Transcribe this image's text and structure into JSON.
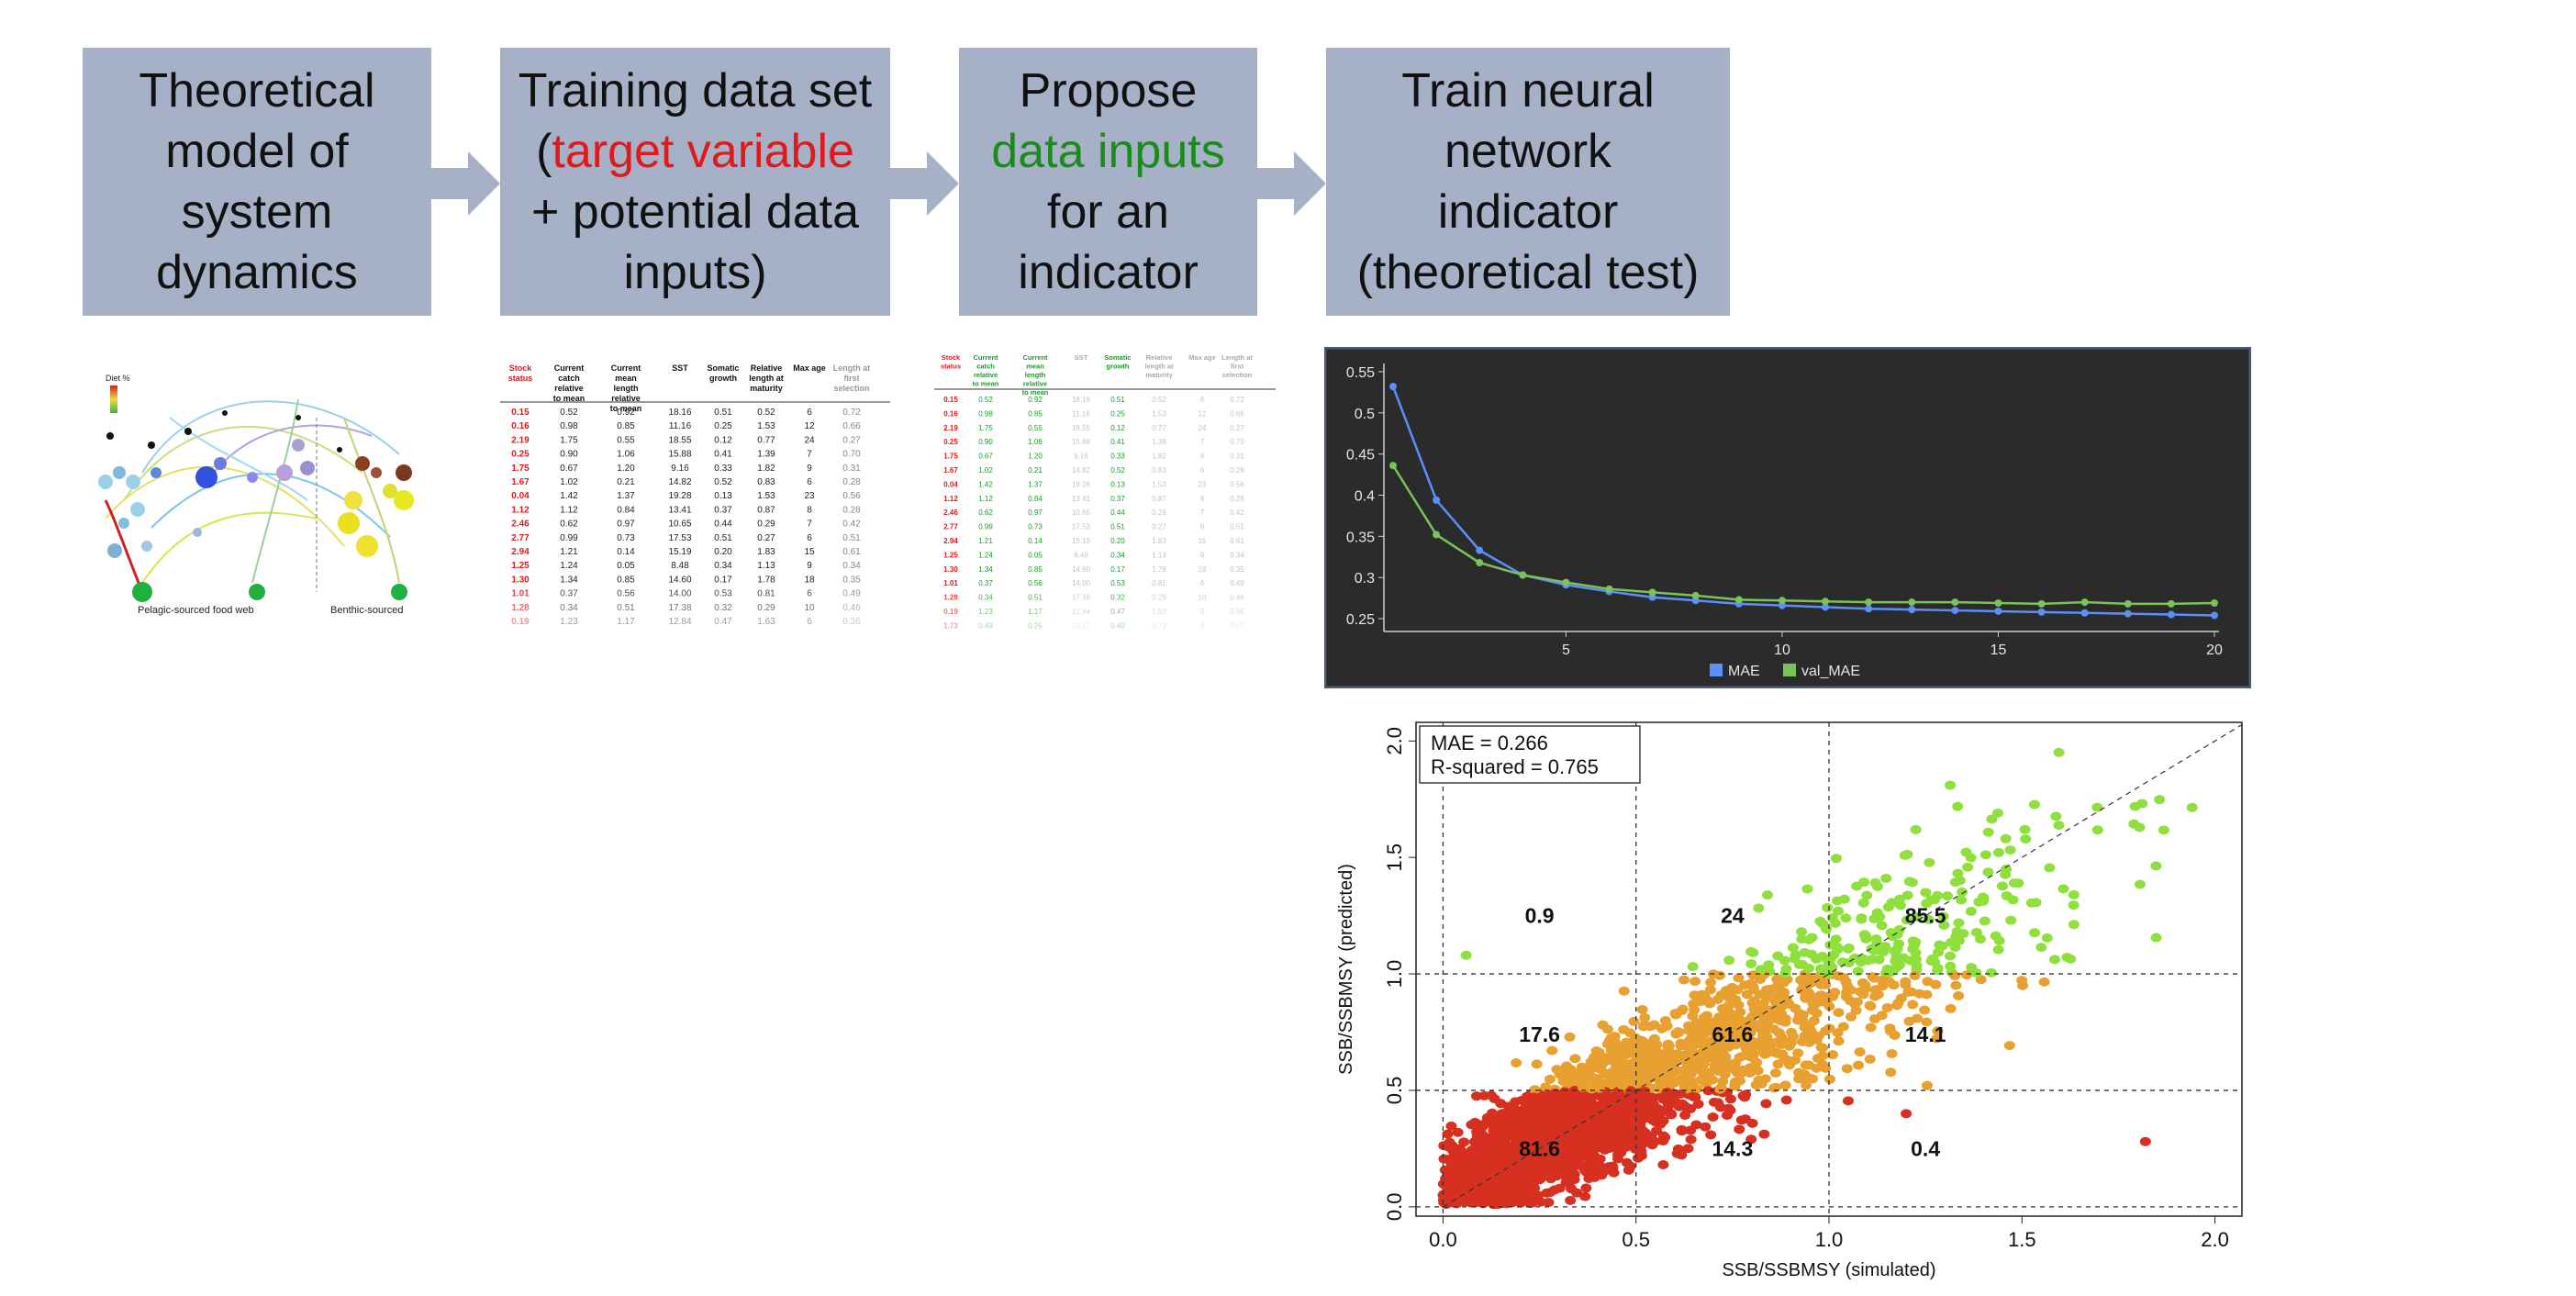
{
  "steps": [
    {
      "lines": [
        "Theoretical",
        "model of",
        "system",
        "dynamics"
      ]
    },
    {
      "lines": [
        "Training data set",
        [
          "(",
          "target variable",
          ""
        ],
        "+ potential data",
        "inputs)"
      ]
    },
    {
      "lines": [
        "Propose",
        "data inputs",
        "for an",
        "indicator"
      ]
    },
    {
      "lines": [
        "Train neural",
        "network",
        "indicator",
        "(theoretical test)"
      ]
    }
  ],
  "step2_line2": {
    "pre": "(",
    "highlight": "target variable"
  },
  "step3_line2": "data inputs",
  "foodweb": {
    "labels": {
      "left": "Pelagic-sourced food web",
      "right": "Benthic-sourced"
    },
    "legend_title": "Diet %"
  },
  "table_headers": [
    "Stock status",
    "Current catch relative to mean",
    "Current mean length relative to mean",
    "SST",
    "Somatic growth",
    "Relative length at maturity",
    "Max age",
    "Length at first selection"
  ],
  "table_rows": [
    [
      "0.15",
      "0.52",
      "0.92",
      "18.16",
      "0.51",
      "0.52",
      "6",
      "0.72"
    ],
    [
      "0.16",
      "0.98",
      "0.85",
      "11.16",
      "0.25",
      "1.53",
      "12",
      "0.66"
    ],
    [
      "2.19",
      "1.75",
      "0.55",
      "18.55",
      "0.12",
      "0.77",
      "24",
      "0.27"
    ],
    [
      "0.25",
      "0.90",
      "1.06",
      "15.88",
      "0.41",
      "1.39",
      "7",
      "0.70"
    ],
    [
      "1.75",
      "0.67",
      "1.20",
      "9.16",
      "0.33",
      "1.82",
      "9",
      "0.31"
    ],
    [
      "1.67",
      "1.02",
      "0.21",
      "14.82",
      "0.52",
      "0.83",
      "6",
      "0.28"
    ],
    [
      "0.04",
      "1.42",
      "1.37",
      "19.28",
      "0.13",
      "1.53",
      "23",
      "0.56"
    ],
    [
      "1.12",
      "1.12",
      "0.84",
      "13.41",
      "0.37",
      "0.87",
      "8",
      "0.28"
    ],
    [
      "2.46",
      "0.62",
      "0.97",
      "10.65",
      "0.44",
      "0.29",
      "7",
      "0.42"
    ],
    [
      "2.77",
      "0.99",
      "0.73",
      "17.53",
      "0.51",
      "0.27",
      "6",
      "0.51"
    ],
    [
      "2.94",
      "1.21",
      "0.14",
      "15.19",
      "0.20",
      "1.83",
      "15",
      "0.61"
    ],
    [
      "1.25",
      "1.24",
      "0.05",
      "8.48",
      "0.34",
      "1.13",
      "9",
      "0.34"
    ],
    [
      "1.30",
      "1.34",
      "0.85",
      "14.60",
      "0.17",
      "1.78",
      "18",
      "0.35"
    ],
    [
      "1.01",
      "0.37",
      "0.56",
      "14.00",
      "0.53",
      "0.81",
      "6",
      "0.49"
    ],
    [
      "1.28",
      "0.34",
      "0.51",
      "17.38",
      "0.32",
      "0.29",
      "10",
      "0.46"
    ],
    [
      "0.19",
      "1.23",
      "1.17",
      "12.84",
      "0.47",
      "1.63",
      "6",
      "0.36"
    ],
    [
      "1.73",
      "0.49",
      "0.25",
      "10.17",
      "0.40",
      "0.72",
      "8",
      "0.61"
    ]
  ],
  "chart_data": [
    {
      "type": "line",
      "x": [
        1,
        2,
        3,
        4,
        5,
        6,
        7,
        8,
        9,
        10,
        11,
        12,
        13,
        14,
        15,
        16,
        17,
        18,
        19,
        20
      ],
      "series": [
        {
          "name": "MAE",
          "color": "#5b8ff9",
          "values": [
            0.532,
            0.394,
            0.333,
            0.303,
            0.291,
            0.283,
            0.276,
            0.272,
            0.268,
            0.266,
            0.264,
            0.262,
            0.261,
            0.26,
            0.259,
            0.258,
            0.257,
            0.256,
            0.255,
            0.254
          ]
        },
        {
          "name": "val_MAE",
          "color": "#7cc25a",
          "values": [
            0.436,
            0.352,
            0.318,
            0.303,
            0.294,
            0.286,
            0.282,
            0.278,
            0.273,
            0.272,
            0.271,
            0.27,
            0.27,
            0.27,
            0.269,
            0.268,
            0.27,
            0.268,
            0.268,
            0.269
          ]
        }
      ],
      "xticks": [
        5,
        10,
        15,
        20
      ],
      "yticks": [
        0.25,
        0.3,
        0.35,
        0.4,
        0.45,
        0.5,
        0.55
      ],
      "ylim": [
        0.24,
        0.56
      ],
      "xlim": [
        1,
        20
      ]
    },
    {
      "type": "scatter",
      "xlabel": "SSB/SSBMSY (simulated)",
      "ylabel": "SSB/SSBMSY (predicted)",
      "xlim": [
        -0.07,
        2.07
      ],
      "ylim": [
        -0.04,
        2.08
      ],
      "xticks": [
        "0.0",
        "0.5",
        "1.0",
        "1.5",
        "2.0"
      ],
      "yticks": [
        "0.0",
        "0.5",
        "1.0",
        "1.5",
        "2.0"
      ],
      "stats": [
        "MAE = 0.266",
        "R-squared = 0.765"
      ],
      "cell_labels": [
        {
          "x": 0.25,
          "y": 1.25,
          "text": "0.9"
        },
        {
          "x": 0.75,
          "y": 1.25,
          "text": "24"
        },
        {
          "x": 1.25,
          "y": 1.25,
          "text": "85.5"
        },
        {
          "x": 0.25,
          "y": 0.74,
          "text": "17.6"
        },
        {
          "x": 0.75,
          "y": 0.74,
          "text": "61.6"
        },
        {
          "x": 1.25,
          "y": 0.74,
          "text": "14.1"
        },
        {
          "x": 0.25,
          "y": 0.25,
          "text": "81.6"
        },
        {
          "x": 0.75,
          "y": 0.25,
          "text": "14.3"
        },
        {
          "x": 1.25,
          "y": 0.25,
          "text": "0.4"
        }
      ],
      "colors": {
        "low": "#d73020",
        "mid": "#e8a030",
        "high": "#8fe03c"
      },
      "thresholds": [
        0.5,
        1.0
      ]
    }
  ]
}
